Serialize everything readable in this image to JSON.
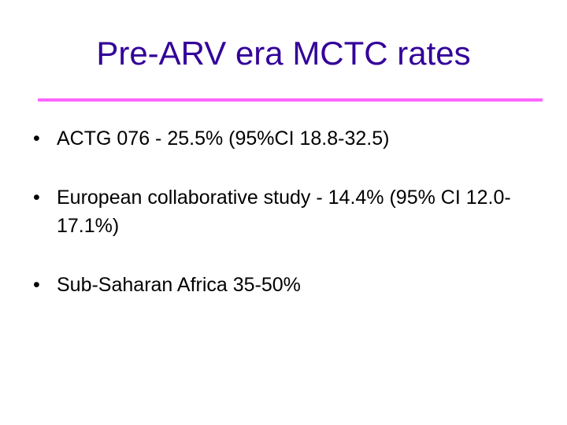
{
  "slide": {
    "title": "Pre-ARV era MCTC rates",
    "bullet_symbol": "•",
    "bullets": [
      "ACTG 076  - 25.5% (95%CI 18.8-32.5)",
      "European collaborative study - 14.4% (95% CI 12.0-17.1%)",
      "Sub-Saharan Africa 35-50%"
    ]
  },
  "colors": {
    "title": "#330099",
    "rule": "#ff66ff",
    "body_text": "#000000"
  }
}
